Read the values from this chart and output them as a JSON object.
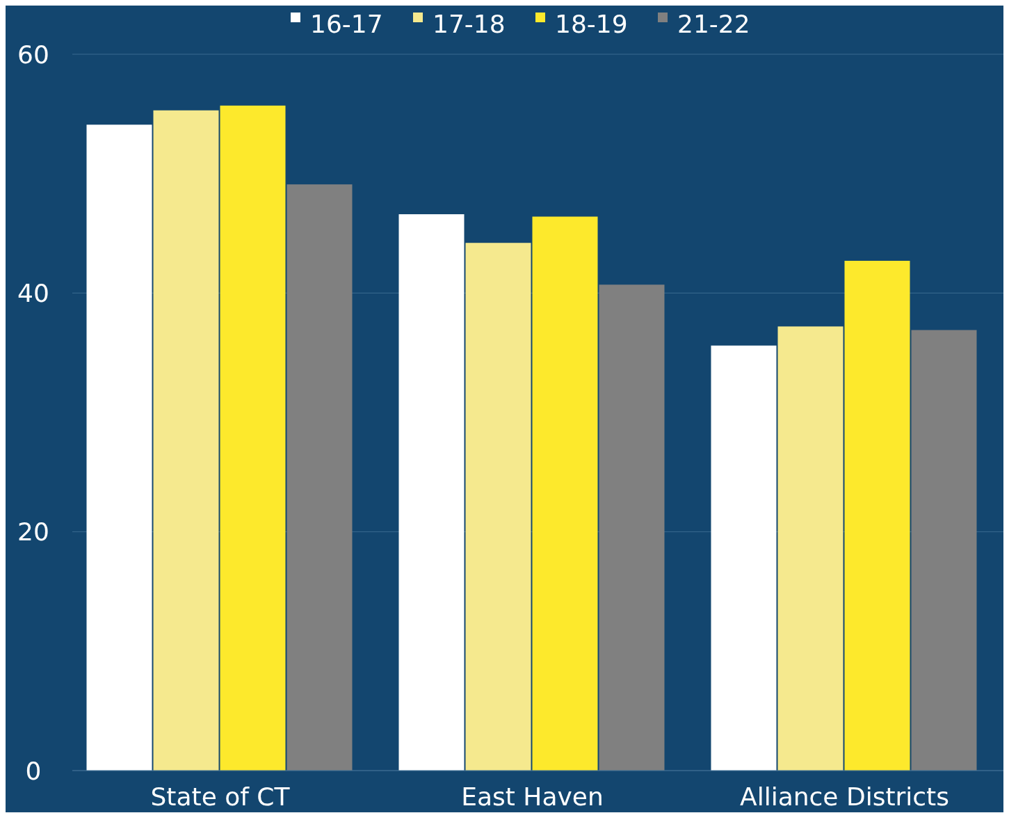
{
  "chart_data": {
    "type": "bar",
    "categories": [
      "State of CT",
      "East Haven",
      "Alliance Districts"
    ],
    "series": [
      {
        "name": "16-17",
        "color": "#ffffff",
        "values": [
          54.1,
          46.6,
          35.6
        ]
      },
      {
        "name": "17-18",
        "color": "#f5e98e",
        "values": [
          55.3,
          44.2,
          37.2
        ]
      },
      {
        "name": "18-19",
        "color": "#fde92c",
        "values": [
          55.7,
          46.4,
          42.7
        ]
      },
      {
        "name": "21-22",
        "color": "#808080",
        "values": [
          49.1,
          40.7,
          36.9
        ]
      }
    ],
    "ylim": [
      0,
      60
    ],
    "yticks": [
      0,
      20,
      40,
      60
    ],
    "grid": "y",
    "legend": "top"
  }
}
